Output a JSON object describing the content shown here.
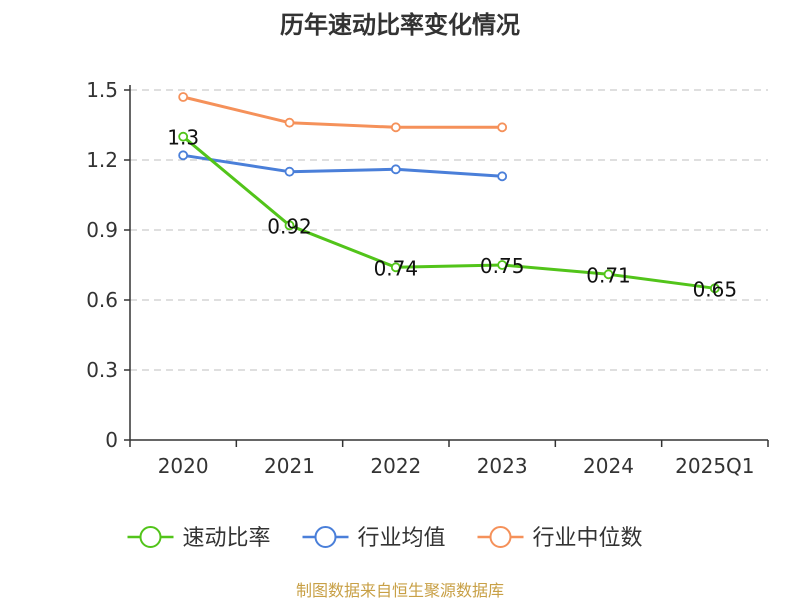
{
  "chart_data": {
    "type": "line",
    "title": "历年速动比率变化情况",
    "categories": [
      "2020",
      "2021",
      "2022",
      "2023",
      "2024",
      "2025Q1"
    ],
    "y_ticks": [
      "0",
      "0.3",
      "0.6",
      "0.9",
      "1.2",
      "1.5"
    ],
    "ylim": [
      0,
      1.5
    ],
    "grid": true,
    "legend_position": "bottom",
    "series": [
      {
        "name": "速动比率",
        "color": "#52c41a",
        "values": [
          1.3,
          0.92,
          0.74,
          0.75,
          0.71,
          0.65
        ],
        "labels": [
          "1.3",
          "0.92",
          "0.74",
          "0.75",
          "0.71",
          "0.65"
        ]
      },
      {
        "name": "行业均值",
        "color": "#4a7fd9",
        "values": [
          1.22,
          1.15,
          1.16,
          1.13,
          null,
          null
        ]
      },
      {
        "name": "行业中位数",
        "color": "#f5915a",
        "values": [
          1.47,
          1.36,
          1.34,
          1.34,
          null,
          null
        ]
      }
    ]
  },
  "footer": {
    "source": "制图数据来自恒生聚源数据库"
  }
}
